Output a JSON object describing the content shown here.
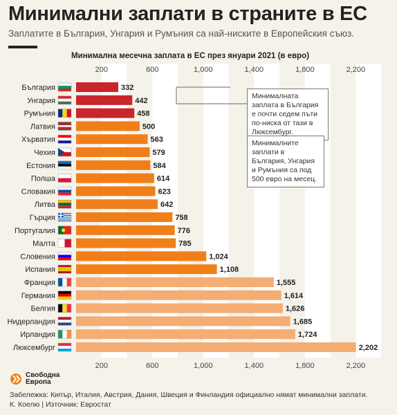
{
  "header": {
    "title": "Минимални заплати в страните в ЕС",
    "subtitle": "Заплатите в България, Унгария и Румъния са най-ниските в Европейския съюз."
  },
  "chart_data": {
    "type": "bar",
    "orientation": "horizontal",
    "title": "Минимална месечна заплата в ЕС през януари 2021 (в евро)",
    "xlim": [
      0,
      2300
    ],
    "ticks": [
      200,
      600,
      1000,
      1400,
      1800,
      2200
    ],
    "tick_labels": [
      "200",
      "600",
      "1,000",
      "1,400",
      "1,800",
      "2,200"
    ],
    "categories": [
      "България",
      "Унгария",
      "Румъния",
      "Латвия",
      "Хърватия",
      "Чехия",
      "Естония",
      "Полша",
      "Словакия",
      "Литва",
      "Гърция",
      "Португалия",
      "Малта",
      "Словения",
      "Испания",
      "Франция",
      "Германия",
      "Белгия",
      "Нидерландия",
      "Ирландия",
      "Люксембург"
    ],
    "values": [
      332,
      442,
      458,
      500,
      563,
      579,
      584,
      614,
      623,
      642,
      758,
      776,
      785,
      1024,
      1108,
      1555,
      1614,
      1626,
      1685,
      1724,
      2202
    ],
    "value_labels": [
      "332",
      "442",
      "458",
      "500",
      "563",
      "579",
      "584",
      "614",
      "623",
      "642",
      "758",
      "776",
      "785",
      "1,024",
      "1,108",
      "1,555",
      "1,614",
      "1,626",
      "1,685",
      "1,724",
      "2,202"
    ],
    "groups": [
      "low",
      "low",
      "low",
      "mid",
      "mid",
      "mid",
      "mid",
      "mid",
      "mid",
      "mid",
      "mid",
      "mid",
      "mid",
      "mid",
      "mid",
      "high",
      "high",
      "high",
      "high",
      "high",
      "high"
    ],
    "colors": {
      "low": "#c9252c",
      "mid": "#f07f1a",
      "high": "#f4ad73",
      "band": "#ffffff"
    },
    "grid": true,
    "flags": [
      {
        "type": "h",
        "colors": [
          "#ffffff",
          "#00966e",
          "#d62612"
        ]
      },
      {
        "type": "h",
        "colors": [
          "#cd2a3e",
          "#ffffff",
          "#436f4d"
        ]
      },
      {
        "type": "v",
        "colors": [
          "#002b7f",
          "#fcd116",
          "#ce1126"
        ]
      },
      {
        "type": "h3",
        "colors": [
          "#9e3039",
          "#ffffff",
          "#9e3039"
        ]
      },
      {
        "type": "h",
        "colors": [
          "#ff0000",
          "#ffffff",
          "#171796"
        ]
      },
      {
        "type": "cz",
        "colors": [
          "#ffffff",
          "#d7141a",
          "#11457e"
        ]
      },
      {
        "type": "h",
        "colors": [
          "#0072ce",
          "#000000",
          "#ffffff"
        ]
      },
      {
        "type": "h2",
        "colors": [
          "#ffffff",
          "#dc143c"
        ]
      },
      {
        "type": "h",
        "colors": [
          "#ffffff",
          "#0b4ea2",
          "#ee1c25"
        ]
      },
      {
        "type": "h",
        "colors": [
          "#fdb913",
          "#006a44",
          "#c1272d"
        ]
      },
      {
        "type": "gr",
        "colors": [
          "#0d5eaf",
          "#ffffff"
        ]
      },
      {
        "type": "pt",
        "colors": [
          "#046a38",
          "#da291c"
        ]
      },
      {
        "type": "v2",
        "colors": [
          "#ffffff",
          "#cf142b"
        ]
      },
      {
        "type": "h",
        "colors": [
          "#ffffff",
          "#0000ff",
          "#ff0000"
        ]
      },
      {
        "type": "es",
        "colors": [
          "#aa151b",
          "#f1bf00",
          "#aa151b"
        ]
      },
      {
        "type": "v",
        "colors": [
          "#0055a4",
          "#ffffff",
          "#ef4135"
        ]
      },
      {
        "type": "h",
        "colors": [
          "#000000",
          "#dd0000",
          "#ffce00"
        ]
      },
      {
        "type": "v",
        "colors": [
          "#000000",
          "#fdda24",
          "#ef3340"
        ]
      },
      {
        "type": "h",
        "colors": [
          "#ae1c28",
          "#ffffff",
          "#21468b"
        ]
      },
      {
        "type": "v",
        "colors": [
          "#169b62",
          "#ffffff",
          "#ff883e"
        ]
      },
      {
        "type": "h",
        "colors": [
          "#ed2939",
          "#ffffff",
          "#00a1de"
        ]
      }
    ]
  },
  "annotations": [
    "Минималната заплата в България е почти седем пъти по-ниска от тази в Люксембург.",
    "Минималните заплати в България, Унгария и Румъния са под 500 евро на месец."
  ],
  "footer": {
    "logo_line1": "Свободна",
    "logo_line2": "Европа",
    "note": "Забележка: Кипър, Италия, Австрия, Дания, Швеция и Финландия официално нямат минимални заплати.",
    "source": "К. Коелю | Източник: Евростат"
  }
}
